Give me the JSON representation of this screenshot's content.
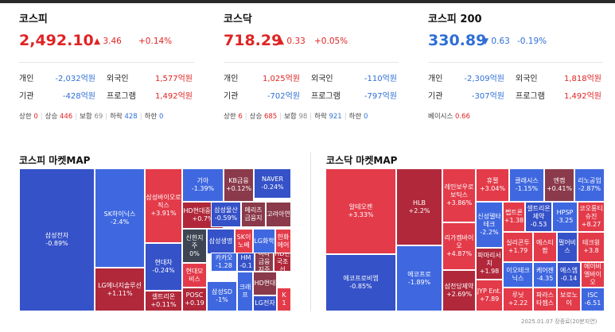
{
  "indices": [
    {
      "name": "코스피",
      "value": "2,492.10",
      "dir": "up",
      "arrow": "▲",
      "change": "3.46",
      "pct": "+0.14%",
      "rows": [
        {
          "l1": "개인",
          "v1": "-2,032억원",
          "d1": "down",
          "l2": "외국인",
          "v2": "1,577억원",
          "d2": "up"
        },
        {
          "l1": "기관",
          "v1": "-428억원",
          "d1": "down",
          "l2": "프로그램",
          "v2": "1,492억원",
          "d2": "up"
        }
      ],
      "stats": {
        "upper_label": "상한",
        "upper": "0",
        "rise_label": "상승",
        "rise": "446",
        "flat_label": "보합",
        "flat": "69",
        "fall_label": "하락",
        "fall": "428",
        "lower_label": "하한",
        "lower": "0"
      }
    },
    {
      "name": "코스닥",
      "value": "718.29",
      "dir": "up",
      "arrow": "▲",
      "change": "0.33",
      "pct": "+0.05%",
      "rows": [
        {
          "l1": "개인",
          "v1": "1,025억원",
          "d1": "up",
          "l2": "외국인",
          "v2": "-110억원",
          "d2": "down"
        },
        {
          "l1": "기관",
          "v1": "-702억원",
          "d1": "down",
          "l2": "프로그램",
          "v2": "-797억원",
          "d2": "down"
        }
      ],
      "stats": {
        "upper_label": "상한",
        "upper": "6",
        "rise_label": "상승",
        "rise": "685",
        "flat_label": "보합",
        "flat": "98",
        "fall_label": "하락",
        "fall": "921",
        "lower_label": "하한",
        "lower": "0"
      }
    },
    {
      "name": "코스피 200",
      "value": "330.89",
      "dir": "down",
      "arrow": "▼",
      "change": "0.63",
      "pct": "-0.19%",
      "rows": [
        {
          "l1": "개인",
          "v1": "-2,309억원",
          "d1": "down",
          "l2": "외국인",
          "v2": "1,818억원",
          "d2": "up"
        },
        {
          "l1": "기관",
          "v1": "-307억원",
          "d1": "down",
          "l2": "프로그램",
          "v2": "1,492억원",
          "d2": "up"
        }
      ],
      "basis": {
        "label": "베이시스",
        "value": "0.66"
      }
    }
  ],
  "kospi_map": {
    "title": "코스피 마켓MAP",
    "tiles": [
      {
        "name": "삼성전자",
        "chg": "-0.89%",
        "color": "c-db"
      },
      {
        "name": "SK하이닉스",
        "chg": "-2.4%",
        "color": "c-b"
      },
      {
        "name": "LG에너지솔루션",
        "chg": "+1.11%",
        "color": "c-dr"
      },
      {
        "name": "삼성바이오로직스",
        "chg": "+3.91%",
        "color": "c-r"
      },
      {
        "name": "현대차",
        "chg": "-0.24%",
        "color": "c-db"
      },
      {
        "name": "셀트리온",
        "chg": "+0.11%",
        "color": "c-dr"
      },
      {
        "name": "기아",
        "chg": "-1.39%",
        "color": "c-b"
      },
      {
        "name": "HD현대중공업",
        "chg": "+0.7%",
        "color": "c-dr"
      },
      {
        "name": "삼성물산",
        "chg": "-0.59%",
        "color": "c-db"
      },
      {
        "name": "KB금융",
        "chg": "+0.12%",
        "color": "c-m"
      },
      {
        "name": "NAVER",
        "chg": "-0.24%",
        "color": "c-db"
      },
      {
        "name": "메리츠금융지",
        "chg": "",
        "color": "c-m"
      },
      {
        "name": "고려아연",
        "chg": "",
        "color": "c-m"
      },
      {
        "name": "신한지주",
        "chg": "0%",
        "color": "c-dg"
      },
      {
        "name": "삼성생명",
        "chg": "",
        "color": "c-db"
      },
      {
        "name": "SK이노베",
        "chg": "",
        "color": "c-r"
      },
      {
        "name": "LG화학",
        "chg": "",
        "color": "c-b"
      },
      {
        "name": "한화에어",
        "chg": "",
        "color": "c-r"
      },
      {
        "name": "현대모비스",
        "chg": "",
        "color": "c-r"
      },
      {
        "name": "카카오",
        "chg": "-1.28",
        "color": "c-b"
      },
      {
        "name": "HM",
        "chg": "-0.1",
        "color": "c-db"
      },
      {
        "name": "하나금융지주",
        "chg": "",
        "color": "c-m"
      },
      {
        "name": "HD한국조선",
        "chg": "",
        "color": "c-dr"
      },
      {
        "name": "POSC",
        "chg": "+0.19",
        "color": "c-dr"
      },
      {
        "name": "삼성SD",
        "chg": "-1%",
        "color": "c-b"
      },
      {
        "name": "크래프",
        "chg": "",
        "color": "c-b"
      },
      {
        "name": "HD현대",
        "chg": "",
        "color": "c-m"
      },
      {
        "name": "LG전자",
        "chg": "",
        "color": "c-db"
      },
      {
        "name": "K",
        "chg": "1",
        "color": "c-r"
      }
    ]
  },
  "kosdaq_map": {
    "title": "코스닥 마켓MAP",
    "tiles": [
      {
        "name": "알테오젠",
        "chg": "+3.33%",
        "color": "c-r"
      },
      {
        "name": "에코프로비엠",
        "chg": "-0.85%",
        "color": "c-db"
      },
      {
        "name": "HLB",
        "chg": "+2.2%",
        "color": "c-dr"
      },
      {
        "name": "에코프로",
        "chg": "-1.89%",
        "color": "c-b"
      },
      {
        "name": "레인보우로보틱스",
        "chg": "+3.86%",
        "color": "c-r"
      },
      {
        "name": "리가켐바이오",
        "chg": "+4.87%",
        "color": "c-r"
      },
      {
        "name": "삼천당제약",
        "chg": "+2.69%",
        "color": "c-dr"
      },
      {
        "name": "휴젤",
        "chg": "+3.04%",
        "color": "c-r"
      },
      {
        "name": "클래시스",
        "chg": "-1.15%",
        "color": "c-b"
      },
      {
        "name": "엔켐",
        "chg": "+0.41%",
        "color": "c-m"
      },
      {
        "name": "리노공업",
        "chg": "-2.87%",
        "color": "c-b"
      },
      {
        "name": "신성델타테크",
        "chg": "-2.2%",
        "color": "c-b"
      },
      {
        "name": "펩트론",
        "chg": "+1.38",
        "color": "c-r"
      },
      {
        "name": "셀트리온제약",
        "chg": "-0.53",
        "color": "c-db"
      },
      {
        "name": "HPSP",
        "chg": "-3.25",
        "color": "c-b"
      },
      {
        "name": "코오롱티슈진",
        "chg": "+8.27",
        "color": "c-r"
      },
      {
        "name": "파마리서치",
        "chg": "+1.98",
        "color": "c-dr"
      },
      {
        "name": "실리콘투",
        "chg": "+1.79",
        "color": "c-r"
      },
      {
        "name": "에스티팜",
        "chg": "",
        "color": "c-r"
      },
      {
        "name": "펄어비스",
        "chg": "",
        "color": "c-db"
      },
      {
        "name": "테크윙",
        "chg": "+3.8",
        "color": "c-r"
      },
      {
        "name": "이오테크닉스",
        "chg": "",
        "color": "c-b"
      },
      {
        "name": "케어젠",
        "chg": "-4.35",
        "color": "c-b"
      },
      {
        "name": "에스엠",
        "chg": "-0.14",
        "color": "c-db"
      },
      {
        "name": "에이비엘바이오",
        "chg": "",
        "color": "c-r"
      },
      {
        "name": "JYP Ent.",
        "chg": "+7.89",
        "color": "c-r"
      },
      {
        "name": "루닛",
        "chg": "+2.22",
        "color": "c-r"
      },
      {
        "name": "파라스타젬스",
        "chg": "",
        "color": "c-r"
      },
      {
        "name": "보로노이",
        "chg": "",
        "color": "c-r"
      },
      {
        "name": "ISC",
        "chg": "-6.51",
        "color": "c-b"
      }
    ]
  },
  "footer": "2025.01.07 장종료(20분지연)"
}
